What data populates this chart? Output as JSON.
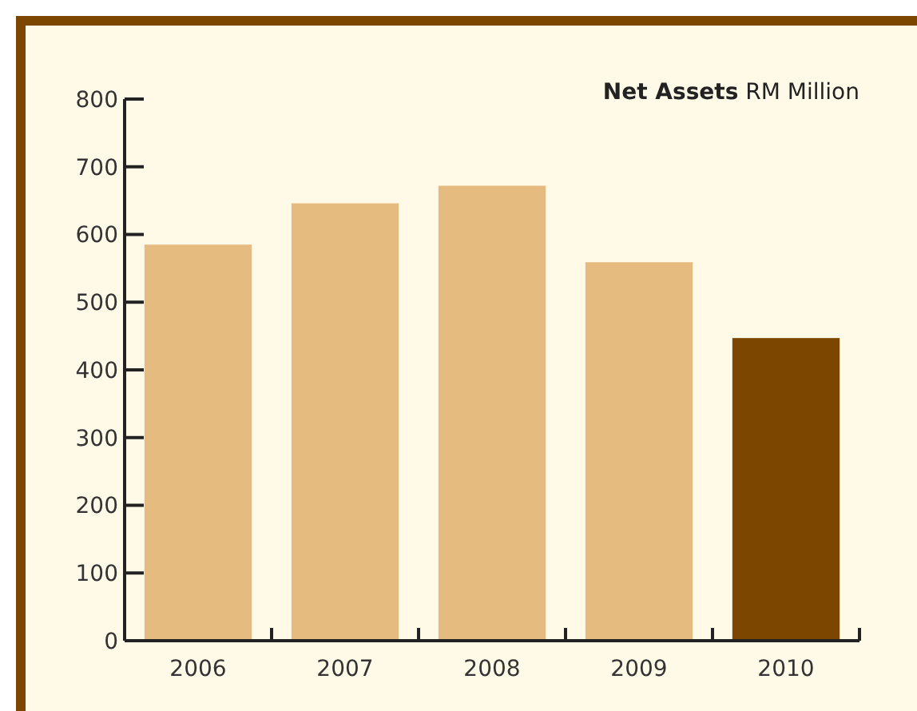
{
  "chart_data": {
    "type": "bar",
    "title": "Net Assets",
    "subtitle": "RM Million",
    "categories": [
      "2006",
      "2007",
      "2008",
      "2009",
      "2010"
    ],
    "values": [
      585,
      646,
      672,
      559,
      447
    ],
    "colors": [
      "#e6bb80",
      "#e6bb80",
      "#e6bb80",
      "#e6bb80",
      "#7d4600"
    ],
    "ylim": [
      0,
      800
    ],
    "yticks": [
      0,
      100,
      200,
      300,
      400,
      500,
      600,
      700,
      800
    ],
    "grid": false
  }
}
